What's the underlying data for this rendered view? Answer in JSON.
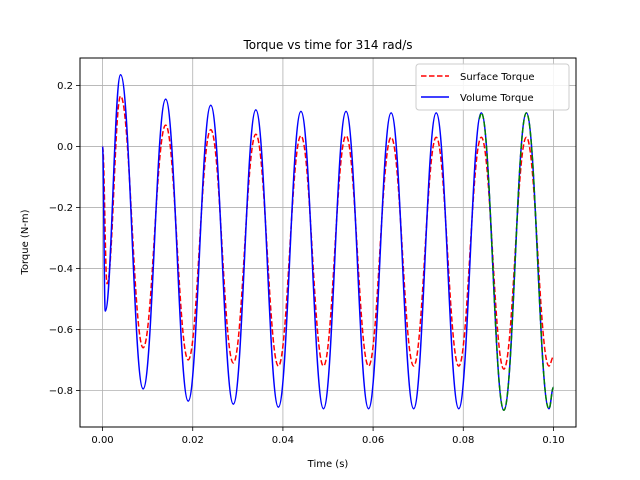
{
  "chart_data": {
    "type": "line",
    "title": "Torque vs time for 314 rad/s",
    "xlabel": "Time (s)",
    "ylabel": "Torque (N-m)",
    "xlim": [
      -0.005,
      0.105
    ],
    "ylim": [
      -0.92,
      0.29
    ],
    "x_ticks": [
      0.0,
      0.02,
      0.04,
      0.06,
      0.08,
      0.1
    ],
    "x_tick_labels": [
      "0.00",
      "0.02",
      "0.04",
      "0.06",
      "0.08",
      "0.10"
    ],
    "y_ticks": [
      -0.8,
      -0.6,
      -0.4,
      -0.2,
      0.0,
      0.2
    ],
    "y_tick_labels": [
      "−0.8",
      "−0.6",
      "−0.4",
      "−0.2",
      "0.0",
      "0.2"
    ],
    "grid": true,
    "legend_position": "top-right",
    "series": [
      {
        "name": "Surface Torque",
        "color": "#ff0000",
        "style": "dashed",
        "x": [
          0.0,
          0.001,
          0.004,
          0.009,
          0.014,
          0.019,
          0.024,
          0.029,
          0.034,
          0.039,
          0.044,
          0.049,
          0.054,
          0.059,
          0.064,
          0.069,
          0.074,
          0.079,
          0.084,
          0.089,
          0.094,
          0.099,
          0.1
        ],
        "y": [
          0.0,
          -0.45,
          0.165,
          -0.66,
          0.07,
          -0.7,
          0.055,
          -0.71,
          0.04,
          -0.72,
          0.035,
          -0.72,
          0.035,
          -0.72,
          0.03,
          -0.72,
          0.03,
          -0.72,
          0.03,
          -0.73,
          0.03,
          -0.72,
          -0.69
        ]
      },
      {
        "name": "Volume Torque",
        "color": "#0000ff",
        "style": "solid",
        "x": [
          0.0,
          0.0006,
          0.004,
          0.009,
          0.014,
          0.019,
          0.024,
          0.029,
          0.034,
          0.039,
          0.044,
          0.049,
          0.054,
          0.059,
          0.064,
          0.069,
          0.074,
          0.079,
          0.084,
          0.089,
          0.094,
          0.099,
          0.1
        ],
        "y": [
          0.0,
          -0.54,
          0.235,
          -0.795,
          0.155,
          -0.835,
          0.135,
          -0.845,
          0.12,
          -0.855,
          0.115,
          -0.86,
          0.115,
          -0.86,
          0.11,
          -0.86,
          0.11,
          -0.86,
          0.11,
          -0.865,
          0.11,
          -0.86,
          -0.79
        ]
      },
      {
        "name": "",
        "color": "#008000",
        "style": "dashed",
        "x": [
          0.0835,
          0.084,
          0.089,
          0.094,
          0.099,
          0.1
        ],
        "y": [
          0.09,
          0.11,
          -0.865,
          0.11,
          -0.86,
          -0.79
        ]
      }
    ]
  }
}
